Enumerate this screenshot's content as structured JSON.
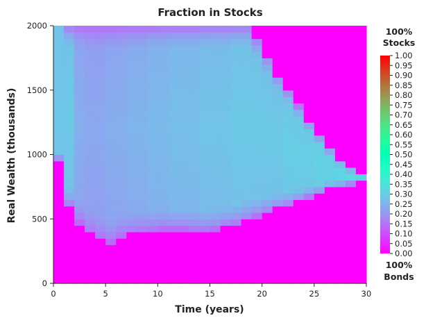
{
  "chart_data": {
    "type": "heatmap",
    "title": "Fraction in Stocks",
    "xlabel": "Time (years)",
    "ylabel": "Real Wealth (thousands)",
    "xlim": [
      0,
      30
    ],
    "ylim": [
      0,
      2000
    ],
    "x_ticks": [
      0,
      5,
      10,
      15,
      20,
      25,
      30
    ],
    "x_tick_labels": [
      "0",
      "5",
      "10",
      "15",
      "20",
      "25",
      "30"
    ],
    "y_ticks": [
      0,
      500,
      1000,
      1500,
      2000
    ],
    "y_tick_labels": [
      "0",
      "500",
      "1000",
      "1500",
      "2000"
    ],
    "colormap": "rainbow",
    "color_range": [
      0.0,
      1.0
    ],
    "colorbar_ticks": [
      "0.00",
      "0.05",
      "0.10",
      "0.15",
      "0.20",
      "0.25",
      "0.30",
      "0.35",
      "0.40",
      "0.45",
      "0.50",
      "0.55",
      "0.60",
      "0.65",
      "0.70",
      "0.75",
      "0.80",
      "0.85",
      "0.90",
      "0.95",
      "1.00"
    ],
    "colorbar_top_label": [
      "100%",
      "Stocks"
    ],
    "colorbar_bottom_label": [
      "100%",
      "Bonds"
    ],
    "grid": false,
    "cols": 30,
    "rows": 40,
    "cell_width_years": 1,
    "cell_height_wealth": 50,
    "lower_boundary_wealth": [
      950,
      600,
      470,
      390,
      340,
      320,
      360,
      390,
      400,
      410,
      420,
      420,
      420,
      410,
      410,
      420,
      440,
      460,
      490,
      520,
      550,
      580,
      610,
      640,
      670,
      700,
      730,
      750,
      770,
      790
    ],
    "upper_boundary_wealth": [
      2000,
      2000,
      2000,
      2000,
      2000,
      2000,
      2000,
      2000,
      2000,
      2000,
      2000,
      2000,
      2000,
      2000,
      2000,
      2000,
      2000,
      2000,
      2000,
      1900,
      1760,
      1620,
      1500,
      1380,
      1260,
      1150,
      1050,
      960,
      900,
      860
    ],
    "base_fraction_by_year": [
      0.29,
      0.27,
      0.22,
      0.21,
      0.21,
      0.22,
      0.22,
      0.23,
      0.23,
      0.24,
      0.24,
      0.25,
      0.25,
      0.25,
      0.26,
      0.26,
      0.26,
      0.27,
      0.27,
      0.27,
      0.27,
      0.27,
      0.28,
      0.28,
      0.28,
      0.29,
      0.29,
      0.3,
      0.31,
      0.33
    ],
    "upper_region_start_wealth": 1020,
    "upper_region_fraction": 0.28,
    "upper_region_end_year": 1
  }
}
